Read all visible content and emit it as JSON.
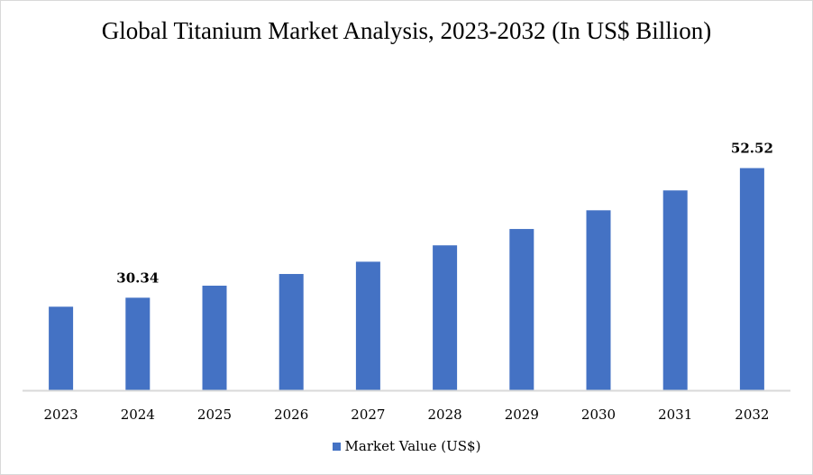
{
  "chart_data": {
    "type": "bar",
    "title": "Global Titanium Market Analysis, 2023-2032 (In US$ Billion)",
    "xlabel": "",
    "ylabel": "",
    "categories": [
      "2023",
      "2024",
      "2025",
      "2026",
      "2027",
      "2028",
      "2029",
      "2030",
      "2031",
      "2032"
    ],
    "series": [
      {
        "name": "Market Value (US$)",
        "color": "#4472c4",
        "values": [
          28.8,
          30.34,
          32.4,
          34.4,
          36.5,
          39.3,
          42.1,
          45.3,
          48.7,
          52.52
        ]
      }
    ],
    "data_labels": [
      {
        "index": 1,
        "text": "30.34"
      },
      {
        "index": 9,
        "text": "52.52"
      }
    ],
    "ylim": [
      14.5,
      60
    ],
    "y_axis_visible": false,
    "grid": false,
    "legend_position": "bottom"
  }
}
